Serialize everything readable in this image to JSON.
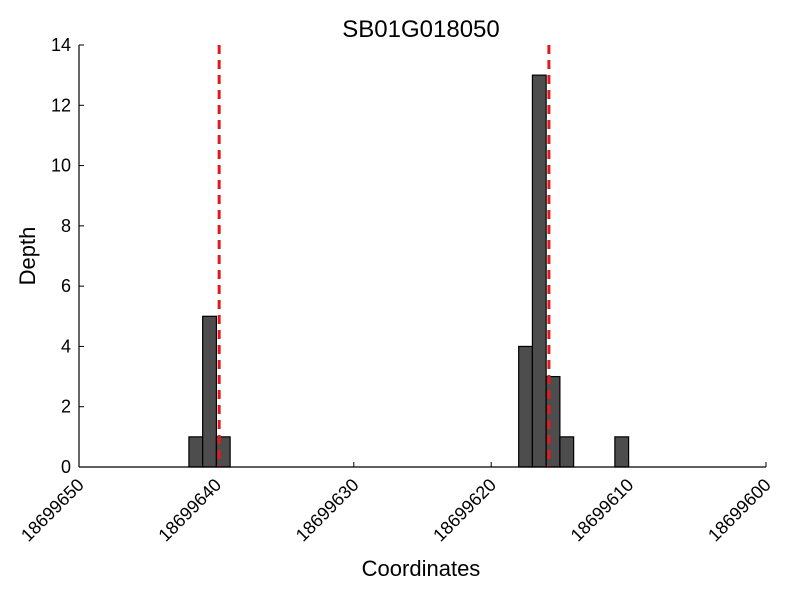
{
  "chart_data": {
    "type": "bar",
    "title": "SB01G018050",
    "xlabel": "Coordinates",
    "ylabel": "Depth",
    "x_reversed": true,
    "xlim": [
      18699650,
      18699600
    ],
    "ylim": [
      0,
      14
    ],
    "x_ticks": [
      18699650,
      18699640,
      18699630,
      18699620,
      18699610,
      18699600
    ],
    "x_tick_labels": [
      "18699650",
      "18699640",
      "18699630",
      "18699620",
      "18699610",
      "18699600"
    ],
    "y_ticks": [
      0,
      2,
      4,
      6,
      8,
      10,
      12,
      14
    ],
    "y_tick_labels": [
      "0",
      "2",
      "4",
      "6",
      "8",
      "10",
      "12",
      "14"
    ],
    "bars": [
      {
        "x": 18699641,
        "value": 1
      },
      {
        "x": 18699640,
        "value": 5
      },
      {
        "x": 18699639,
        "value": 1
      },
      {
        "x": 18699617,
        "value": 4
      },
      {
        "x": 18699616,
        "value": 13
      },
      {
        "x": 18699615,
        "value": 3
      },
      {
        "x": 18699614,
        "value": 1
      },
      {
        "x": 18699610,
        "value": 1
      }
    ],
    "markers": [
      18699639.8,
      18699615.8
    ],
    "grid": false,
    "bar_color": "#4d4d4d",
    "marker_color": "#e31a1c"
  }
}
